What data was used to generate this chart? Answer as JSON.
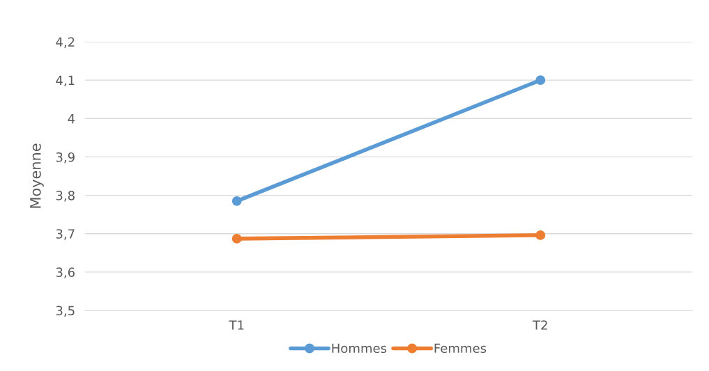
{
  "chart_data": {
    "type": "line",
    "ylabel": "Moyenne",
    "categories": [
      "T1",
      "T2"
    ],
    "series": [
      {
        "name": "Hommes",
        "color": "#5b9bd5",
        "values": [
          3.785,
          4.1
        ]
      },
      {
        "name": "Femmes",
        "color": "#ed7d31",
        "values": [
          3.687,
          3.696
        ]
      }
    ],
    "ylim": [
      3.5,
      4.2
    ],
    "yticks": [
      {
        "value": 3.5,
        "label": "3,5"
      },
      {
        "value": 3.6,
        "label": "3,6"
      },
      {
        "value": 3.7,
        "label": "3,7"
      },
      {
        "value": 3.8,
        "label": "3,8"
      },
      {
        "value": 3.9,
        "label": "3,9"
      },
      {
        "value": 4,
        "label": "4"
      },
      {
        "value": 4.1,
        "label": "4,1"
      },
      {
        "value": 4.2,
        "label": "4,2"
      }
    ],
    "grid": "y",
    "legend": "bottom",
    "marker": "circle",
    "line_style": "solid"
  }
}
